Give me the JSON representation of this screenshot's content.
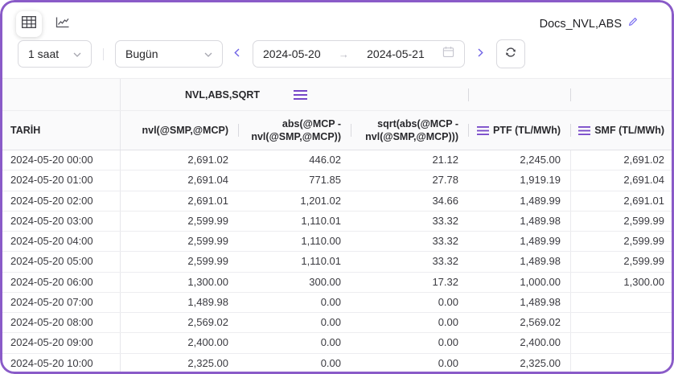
{
  "window": {
    "title": "Docs_NVL,ABS",
    "accent_color": "#8A5BC8",
    "menu_icon_color": "#7646C8",
    "nav_chevron_color": "#6E62E5"
  },
  "toolbar": {
    "views": [
      {
        "name": "table-view",
        "icon": "table-icon",
        "active": true
      },
      {
        "name": "chart-view",
        "icon": "line-chart-icon",
        "active": false
      }
    ],
    "edit_icon": "pencil-icon"
  },
  "controls": {
    "interval_select": {
      "value": "1 saat",
      "icon": "chevron-down-icon"
    },
    "range_select": {
      "value": "Bugün",
      "icon": "chevron-down-icon"
    },
    "prev_icon": "chevron-left-icon",
    "next_icon": "chevron-right-icon",
    "date_from": "2024-05-20",
    "date_to": "2024-05-21",
    "swap_arrow": "→",
    "calendar_icon": "calendar-icon",
    "refresh_icon": "sync-icon"
  },
  "table": {
    "group_header": {
      "label": "NVL,ABS,SQRT",
      "menu_icon": "hamburger-menu-icon"
    },
    "columns": [
      {
        "key": "tarih",
        "label": "TARİH",
        "align": "left"
      },
      {
        "key": "nvl",
        "label": "nvl(@SMP,@MCP)",
        "align": "right"
      },
      {
        "key": "abs",
        "label": "abs(@MCP - nvl(@SMP,@MCP))",
        "align": "right"
      },
      {
        "key": "sqrt",
        "label": "sqrt(abs(@MCP - nvl(@SMP,@MCP)))",
        "align": "right"
      },
      {
        "key": "ptf",
        "label": "PTF (TL/MWh)",
        "align": "right",
        "menu_icon": true
      },
      {
        "key": "smf",
        "label": "SMF (TL/MWh)",
        "align": "right",
        "menu_icon": true
      }
    ],
    "rows": [
      {
        "tarih": "2024-05-20 00:00",
        "nvl": "2,691.02",
        "abs": "446.02",
        "sqrt": "21.12",
        "ptf": "2,245.00",
        "smf": "2,691.02"
      },
      {
        "tarih": "2024-05-20 01:00",
        "nvl": "2,691.04",
        "abs": "771.85",
        "sqrt": "27.78",
        "ptf": "1,919.19",
        "smf": "2,691.04"
      },
      {
        "tarih": "2024-05-20 02:00",
        "nvl": "2,691.01",
        "abs": "1,201.02",
        "sqrt": "34.66",
        "ptf": "1,489.99",
        "smf": "2,691.01"
      },
      {
        "tarih": "2024-05-20 03:00",
        "nvl": "2,599.99",
        "abs": "1,110.01",
        "sqrt": "33.32",
        "ptf": "1,489.98",
        "smf": "2,599.99"
      },
      {
        "tarih": "2024-05-20 04:00",
        "nvl": "2,599.99",
        "abs": "1,110.00",
        "sqrt": "33.32",
        "ptf": "1,489.99",
        "smf": "2,599.99"
      },
      {
        "tarih": "2024-05-20 05:00",
        "nvl": "2,599.99",
        "abs": "1,110.01",
        "sqrt": "33.32",
        "ptf": "1,489.98",
        "smf": "2,599.99"
      },
      {
        "tarih": "2024-05-20 06:00",
        "nvl": "1,300.00",
        "abs": "300.00",
        "sqrt": "17.32",
        "ptf": "1,000.00",
        "smf": "1,300.00"
      },
      {
        "tarih": "2024-05-20 07:00",
        "nvl": "1,489.98",
        "abs": "0.00",
        "sqrt": "0.00",
        "ptf": "1,489.98",
        "smf": ""
      },
      {
        "tarih": "2024-05-20 08:00",
        "nvl": "2,569.02",
        "abs": "0.00",
        "sqrt": "0.00",
        "ptf": "2,569.02",
        "smf": ""
      },
      {
        "tarih": "2024-05-20 09:00",
        "nvl": "2,400.00",
        "abs": "0.00",
        "sqrt": "0.00",
        "ptf": "2,400.00",
        "smf": ""
      },
      {
        "tarih": "2024-05-20 10:00",
        "nvl": "2,325.00",
        "abs": "0.00",
        "sqrt": "0.00",
        "ptf": "2,325.00",
        "smf": ""
      }
    ]
  }
}
